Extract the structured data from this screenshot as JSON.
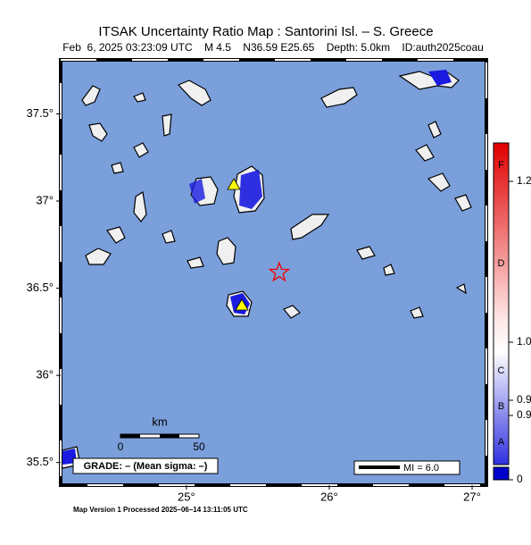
{
  "title": "ITSAK Uncertainty Ratio Map : Santorini Isl. – S. Greece",
  "subtitle": "Feb  6, 2025 03:23:09 UTC    M 4.5    N36.59 E25.65    Depth: 5.0km    ID:auth2025coau",
  "map": {
    "xlim": [
      24.12,
      27.1
    ],
    "ylim": [
      35.37,
      37.81
    ],
    "xticks": [
      {
        "value": 25,
        "label": "25°"
      },
      {
        "value": 26,
        "label": "26°"
      },
      {
        "value": 27,
        "label": "27°"
      }
    ],
    "yticks": [
      {
        "value": 35.5,
        "label": "35.5°"
      },
      {
        "value": 36,
        "label": "36°"
      },
      {
        "value": 36.5,
        "label": "36.5°"
      },
      {
        "value": 37,
        "label": "37°"
      },
      {
        "value": 37.5,
        "label": "37.5°"
      }
    ],
    "epicenter": {
      "lon": 25.65,
      "lat": 36.59
    }
  },
  "colorbar": {
    "ticks": [
      1.2,
      {
        "value": 1,
        "label": "1.0"
      },
      0.9,
      0.9,
      0
    ],
    "grades": [
      "F",
      "D",
      "C",
      "B",
      "A"
    ]
  },
  "scale_bar": {
    "unit": "km",
    "labels": [
      0,
      50
    ]
  },
  "grade_box": "GRADE: – (Mean sigma: –)",
  "mi_legend": "MI = 6.0",
  "footer": "Map Version 1 Processed 2025–06–14 13:11:05 UTC"
}
